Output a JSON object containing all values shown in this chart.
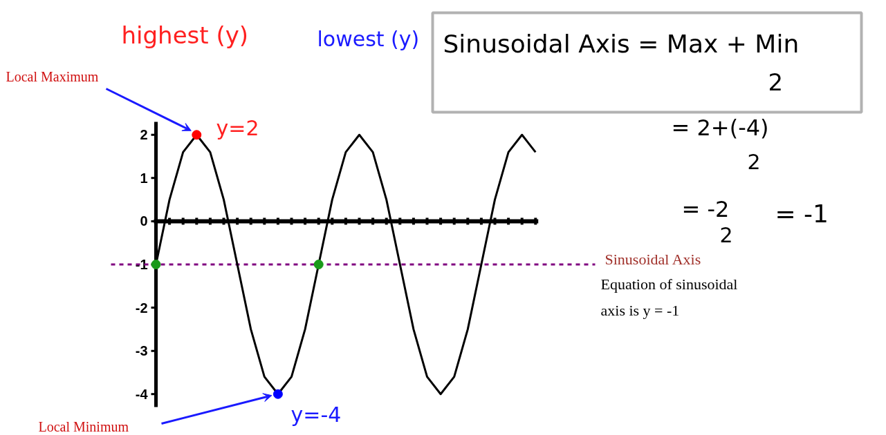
{
  "chart_data": {
    "type": "line",
    "categories": [
      null,
      null,
      null,
      null,
      null,
      null,
      null,
      null,
      null,
      null,
      null,
      null,
      null,
      null,
      null,
      null,
      null,
      null,
      null,
      null,
      null,
      null,
      null,
      null,
      null,
      null,
      null,
      null,
      null
    ],
    "series": [
      {
        "color": "#000000",
        "values": [
          -1,
          0.5,
          1.6,
          2,
          1.6,
          0.5,
          -1,
          -2.5,
          -3.6,
          -4,
          -3.6,
          -2.5,
          -1,
          0.5,
          1.6,
          2,
          1.6,
          0.5,
          -1,
          -2.5,
          -3.6,
          -4,
          -3.6,
          -2.5,
          -1,
          0.5,
          1.6,
          2,
          1.6
        ]
      }
    ],
    "ylim": [
      -4.3,
      2.3
    ],
    "yticks": [
      2,
      1,
      0,
      -1,
      -2,
      -3,
      -4
    ],
    "tick_labels": "y",
    "grid": false,
    "marker": "none",
    "line_style": "solid",
    "ref_lines": [
      {
        "axis": "y",
        "value": -1,
        "label": "Sinusoidal Axis",
        "color": "#800080",
        "line_style": "dashed"
      }
    ],
    "annotations": [
      "Local Maximum",
      "y=2",
      "Local Minimum",
      "y=-4",
      "highest (y)",
      "lowest (y)",
      "Sinusoidal Axis = Max + Min",
      "2",
      "= 2+(-4)",
      "2",
      "= -2",
      "2",
      "= -1",
      "Equation of sinusoidal",
      "axis is y = -1"
    ]
  }
}
